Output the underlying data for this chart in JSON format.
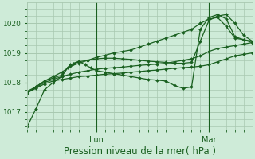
{
  "background_color": "#ceebd8",
  "grid_color": "#a8c8b0",
  "line_color": "#1a6020",
  "xlim": [
    0,
    78
  ],
  "ylim": [
    1016.4,
    1020.7
  ],
  "yticks": [
    1017,
    1018,
    1019,
    1020
  ],
  "xtick_lun": 24,
  "xtick_mar": 63,
  "xlabel": "Pression niveau de la mer( hPa )",
  "xlabel_fontsize": 8.5,
  "series": [
    {
      "x": [
        0,
        3,
        6,
        9,
        12,
        15,
        18,
        21,
        24,
        27,
        30,
        33,
        36,
        39,
        42,
        45,
        48,
        51,
        54,
        57,
        60,
        63,
        66,
        69,
        72,
        75,
        78
      ],
      "y": [
        1017.65,
        1017.8,
        1017.95,
        1018.05,
        1018.1,
        1018.15,
        1018.2,
        1018.22,
        1018.25,
        1018.28,
        1018.3,
        1018.32,
        1018.35,
        1018.37,
        1018.4,
        1018.42,
        1018.45,
        1018.48,
        1018.5,
        1018.52,
        1018.55,
        1018.6,
        1018.7,
        1018.8,
        1018.9,
        1018.95,
        1019.0
      ]
    },
    {
      "x": [
        0,
        3,
        6,
        9,
        12,
        15,
        18,
        21,
        24,
        27,
        30,
        33,
        36,
        39,
        42,
        45,
        48,
        51,
        54,
        57,
        60,
        63,
        66,
        69,
        72,
        75,
        78
      ],
      "y": [
        1017.65,
        1017.82,
        1018.0,
        1018.1,
        1018.2,
        1018.28,
        1018.35,
        1018.4,
        1018.45,
        1018.48,
        1018.5,
        1018.52,
        1018.55,
        1018.58,
        1018.6,
        1018.62,
        1018.65,
        1018.7,
        1018.75,
        1018.8,
        1018.9,
        1019.05,
        1019.15,
        1019.2,
        1019.25,
        1019.3,
        1019.35
      ]
    },
    {
      "x": [
        0,
        3,
        6,
        9,
        12,
        15,
        18,
        21,
        24,
        27,
        30,
        33,
        36,
        39,
        42,
        45,
        48,
        51,
        54,
        57,
        60,
        63,
        66,
        69,
        72,
        75,
        78
      ],
      "y": [
        1017.7,
        1017.85,
        1018.05,
        1018.15,
        1018.25,
        1018.6,
        1018.7,
        1018.75,
        1018.8,
        1018.82,
        1018.82,
        1018.8,
        1018.78,
        1018.75,
        1018.72,
        1018.7,
        1018.68,
        1018.65,
        1018.65,
        1018.68,
        1019.4,
        1020.1,
        1020.25,
        1020.3,
        1020.0,
        1019.6,
        1019.4
      ]
    },
    {
      "x": [
        0,
        3,
        6,
        9,
        12,
        14,
        16,
        18,
        20,
        22,
        24,
        27,
        30,
        33,
        36,
        39,
        42,
        45,
        48,
        51,
        54,
        57,
        60,
        63,
        66,
        69,
        72,
        75,
        78
      ],
      "y": [
        1016.5,
        1017.1,
        1017.75,
        1018.0,
        1018.2,
        1018.5,
        1018.65,
        1018.72,
        1018.6,
        1018.5,
        1018.4,
        1018.35,
        1018.3,
        1018.25,
        1018.2,
        1018.15,
        1018.1,
        1018.08,
        1018.05,
        1017.9,
        1017.8,
        1017.85,
        1019.8,
        1020.2,
        1020.3,
        1020.15,
        1019.55,
        1019.45,
        1019.35
      ]
    },
    {
      "x": [
        0,
        3,
        6,
        9,
        12,
        15,
        18,
        21,
        24,
        27,
        30,
        33,
        36,
        39,
        42,
        45,
        48,
        51,
        54,
        57,
        60,
        63,
        66,
        69,
        72,
        75,
        78
      ],
      "y": [
        1017.65,
        1017.85,
        1018.05,
        1018.2,
        1018.35,
        1018.55,
        1018.65,
        1018.75,
        1018.85,
        1018.92,
        1019.0,
        1019.05,
        1019.1,
        1019.2,
        1019.3,
        1019.4,
        1019.5,
        1019.6,
        1019.7,
        1019.8,
        1020.0,
        1020.15,
        1020.2,
        1019.9,
        1019.5,
        1019.45,
        1019.4
      ]
    }
  ]
}
